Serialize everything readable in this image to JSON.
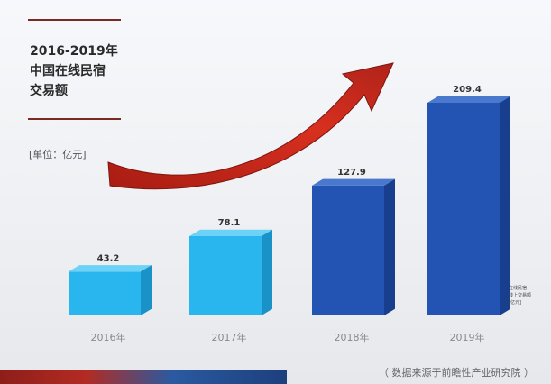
{
  "title_lines": [
    "2016-2019年",
    "中国在线民宿",
    "交易额"
  ],
  "unit": "[单位：亿元]",
  "source": "（ 数据来源于前瞻性产业研究院 ）",
  "legend_note": [
    "在线民宿",
    "线上交易额",
    "[亿元]"
  ],
  "colors": {
    "accent": "#7a2a20",
    "bar_light": "#29b6ee",
    "bar_dark": "#2354b3",
    "arrow": "#cc2a1c"
  },
  "chart_data": {
    "type": "bar",
    "categories": [
      "2016年",
      "2017年",
      "2018年",
      "2019年"
    ],
    "values": [
      43.2,
      78.1,
      127.9,
      209.4
    ],
    "value_labels": [
      "43.2",
      "78.1",
      "127.9",
      "209.4"
    ],
    "title": "2016-2019年中国在线民宿交易额",
    "ylabel": "单位：亿元",
    "ylim": [
      0,
      220
    ],
    "grid": false
  }
}
